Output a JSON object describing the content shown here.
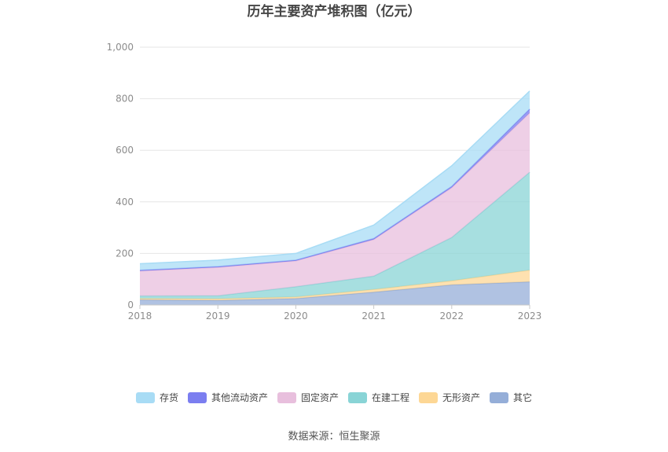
{
  "chart_data": {
    "type": "area",
    "stacked": true,
    "title": "历年主要资产堆积图（亿元）",
    "x": [
      "2018",
      "2019",
      "2020",
      "2021",
      "2022",
      "2023"
    ],
    "y_ticks": [
      "0",
      "200",
      "400",
      "600",
      "800",
      "1,000"
    ],
    "ylim": [
      0,
      1000
    ],
    "grid": true,
    "legend_position": "bottom",
    "series": [
      {
        "name": "其它",
        "color": "#95aed8",
        "values": [
          20,
          18,
          25,
          50,
          78,
          90
        ]
      },
      {
        "name": "无形资产",
        "color": "#fdd795",
        "values": [
          5,
          6,
          6,
          10,
          16,
          45
        ]
      },
      {
        "name": "在建工程",
        "color": "#89d4d6",
        "values": [
          10,
          12,
          40,
          52,
          168,
          380
        ]
      },
      {
        "name": "固定资产",
        "color": "#e8bfdd",
        "values": [
          97,
          110,
          100,
          142,
          193,
          230
        ]
      },
      {
        "name": "其他流动资产",
        "color": "#7b7ef0",
        "values": [
          3,
          3,
          3,
          4,
          5,
          15
        ]
      },
      {
        "name": "存货",
        "color": "#a8dcf5",
        "values": [
          25,
          25,
          26,
          52,
          80,
          70
        ]
      }
    ],
    "legend_order": [
      "存货",
      "其他流动资产",
      "固定资产",
      "在建工程",
      "无形资产",
      "其它"
    ]
  },
  "source_label": "数据来源：恒生聚源"
}
